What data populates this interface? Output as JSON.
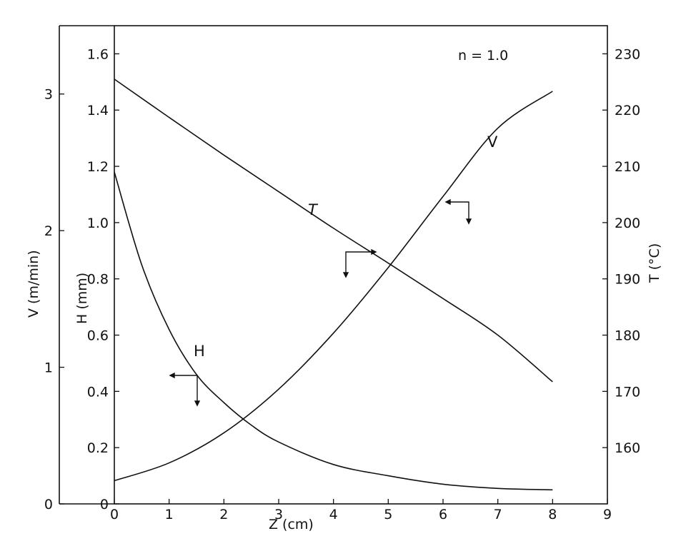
{
  "chart_data": {
    "type": "line",
    "annotation": "n = 1.0",
    "xlabel": "Z (cm)",
    "xlim": [
      0,
      9
    ],
    "xticks": [
      0,
      1,
      2,
      3,
      4,
      5,
      6,
      7,
      8,
      9
    ],
    "axes": {
      "V": {
        "label": "V (m/min)",
        "side": "far-left",
        "lim": [
          0,
          3.5
        ],
        "ticks": [
          "0",
          "1",
          "2",
          "3"
        ]
      },
      "H": {
        "label": "H (mm)",
        "side": "left",
        "lim": [
          0,
          1.7
        ],
        "ticks": [
          "0",
          "0.2",
          "0.4",
          "0.6",
          "0.8",
          "1.0",
          "1.2",
          "1.4",
          "1.6"
        ]
      },
      "T": {
        "label": "T (°C)",
        "side": "right",
        "lim": [
          150,
          235
        ],
        "ticks": [
          "160",
          "170",
          "180",
          "190",
          "200",
          "210",
          "220",
          "230"
        ]
      }
    },
    "series": [
      {
        "name": "T",
        "axis": "T",
        "x": [
          0,
          1,
          2,
          3,
          4,
          5,
          6,
          7,
          8
        ],
        "values": [
          225.5,
          218.7,
          212.0,
          205.5,
          199.0,
          192.8,
          186.5,
          180.0,
          171.7
        ]
      },
      {
        "name": "V",
        "axis": "V",
        "x": [
          0,
          1,
          2,
          3,
          4,
          5,
          6,
          7,
          8
        ],
        "values": [
          0.17,
          0.3,
          0.52,
          0.84,
          1.25,
          1.73,
          2.25,
          2.75,
          3.02
        ]
      },
      {
        "name": "H",
        "axis": "H",
        "x": [
          0,
          0.5,
          1,
          1.5,
          2,
          2.5,
          3,
          4,
          5,
          6,
          7,
          8
        ],
        "values": [
          1.18,
          0.85,
          0.62,
          0.46,
          0.36,
          0.28,
          0.22,
          0.14,
          0.1,
          0.07,
          0.055,
          0.05
        ]
      }
    ],
    "grid": false,
    "legend": "none"
  }
}
